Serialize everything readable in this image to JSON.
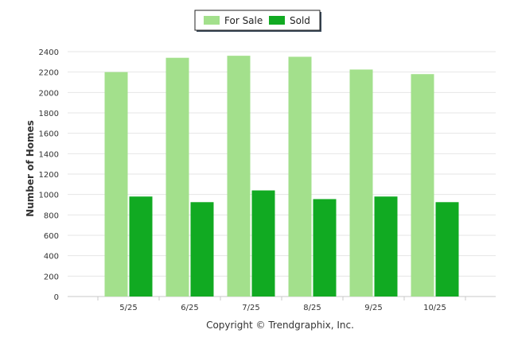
{
  "chart_data": {
    "type": "bar",
    "categories": [
      "5/25",
      "6/25",
      "7/25",
      "8/25",
      "9/25",
      "10/25"
    ],
    "series": [
      {
        "name": "For Sale",
        "values": [
          2200,
          2340,
          2360,
          2350,
          2225,
          2180
        ],
        "color": "#a3e08c"
      },
      {
        "name": "Sold",
        "values": [
          980,
          925,
          1040,
          955,
          980,
          925
        ],
        "color": "#11aa22"
      }
    ],
    "ylabel": "Number of Homes",
    "xlabel": "",
    "ylim": [
      0,
      2400
    ],
    "yticks": [
      0,
      200,
      400,
      600,
      800,
      1000,
      1200,
      1400,
      1600,
      1800,
      2000,
      2200,
      2400
    ],
    "grid": true,
    "legend_position": "top-center"
  },
  "credit": "Copyright © Trendgraphix, Inc."
}
